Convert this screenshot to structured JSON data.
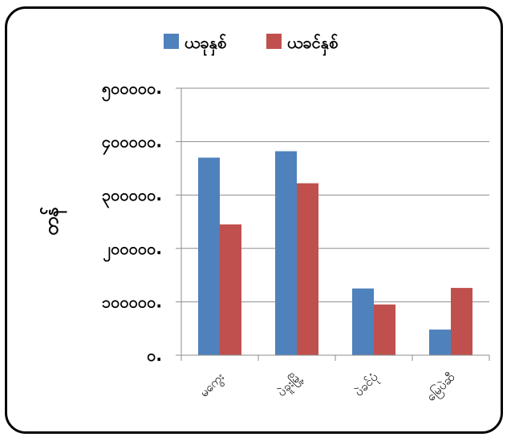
{
  "chart_data": {
    "type": "bar",
    "ylabel": "တန်",
    "xlabel": "",
    "categories": [
      "မကွေး",
      "ပဲခူးမြို့",
      "ပဲခင်ပုံ",
      "မြေပဲဆီ"
    ],
    "series": [
      {
        "name": "ယခုနှစ်",
        "color": "#4f81bd",
        "values": [
          370000,
          382000,
          125000,
          48000
        ]
      },
      {
        "name": "ယခင်နှစ်",
        "color": "#c0504d",
        "values": [
          245000,
          322000,
          95000,
          126000
        ]
      }
    ],
    "yticks": [
      0,
      100000,
      200000,
      300000,
      400000,
      500000
    ],
    "ytick_labels": [
      "၀.",
      "၁၀၀၀၀၀.",
      "၂၀၀၀၀၀.",
      "၃၀၀၀၀၀.",
      "၄၀၀၀၀၀.",
      "၅၀၀၀၀၀."
    ],
    "ylim": [
      0,
      500000
    ],
    "grid": true,
    "legend_position": "top"
  }
}
